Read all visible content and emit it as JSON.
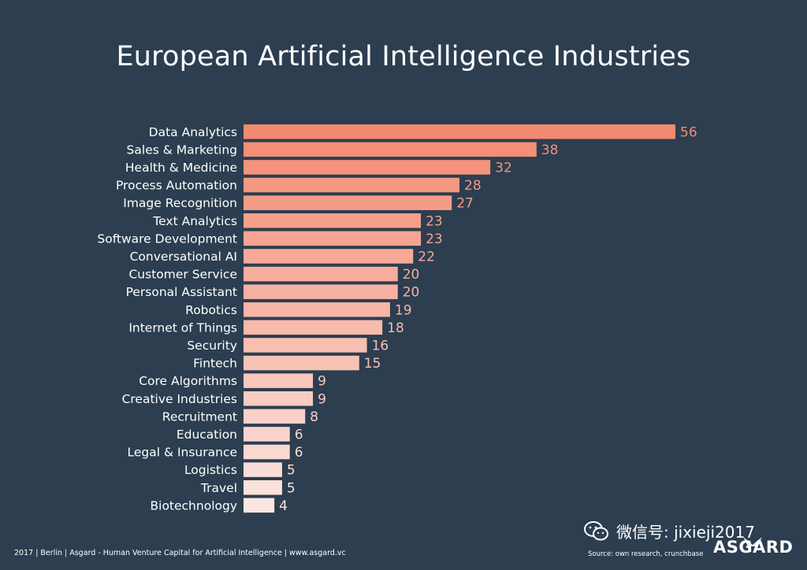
{
  "header": {
    "title": "European Artificial Intelligence Industries"
  },
  "chart_data": {
    "type": "bar",
    "orientation": "horizontal",
    "title": "European Artificial Intelligence Industries",
    "categories": [
      "Data Analytics",
      "Sales & Marketing",
      "Health & Medicine",
      "Process Automation",
      "Image Recognition",
      "Text Analytics",
      "Software Development",
      "Conversational AI",
      "Customer Service",
      "Personal Assistant",
      "Robotics",
      "Internet of Things",
      "Security",
      "Fintech",
      "Core Algorithms",
      "Creative Industries",
      "Recruitment",
      "Education",
      "Legal & Insurance",
      "Logistics",
      "Travel",
      "Biotechnology"
    ],
    "values": [
      56,
      38,
      32,
      28,
      27,
      23,
      23,
      22,
      20,
      20,
      19,
      18,
      16,
      15,
      9,
      9,
      8,
      6,
      6,
      5,
      5,
      4
    ],
    "xlim": [
      0,
      56
    ],
    "grid": false,
    "colors": {
      "max": "#f48a72",
      "min": "#fbe6e1",
      "value_label": "#f48a72"
    }
  },
  "footer": {
    "left": "2017 | Berlin | Asgard - Human Venture Capital for Artificial Intelligence | www.asgard.vc",
    "source": "Source: own research, crunchbase"
  },
  "watermark": {
    "text": "微信号: jixieji2017",
    "icon": "wechat-icon"
  },
  "brand": {
    "name": "ASGARD"
  },
  "colors": {
    "background": "#2c3e50",
    "text": "#ffffff"
  }
}
